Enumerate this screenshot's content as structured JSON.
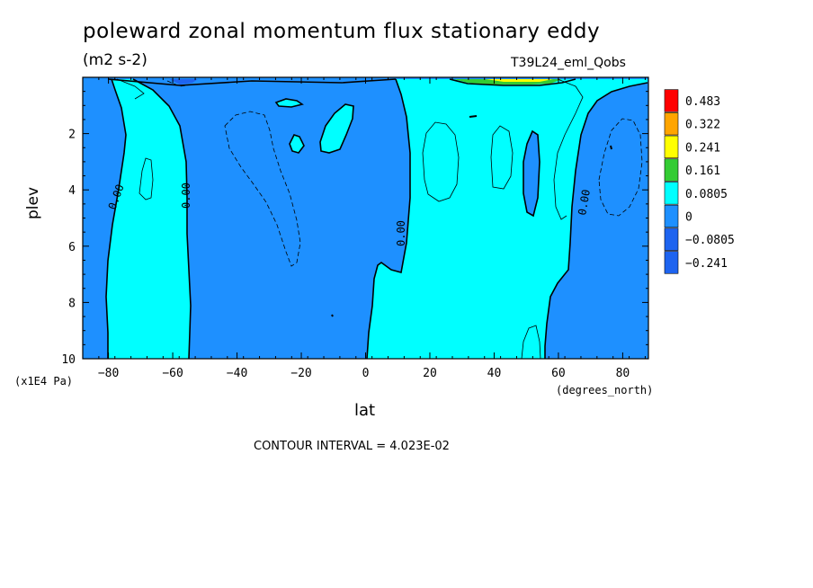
{
  "title": "poleward zonal momentum flux stationary eddy",
  "units": "(m2 s-2)",
  "run_label": "T39L24_eml_Qobs",
  "contour_interval": "CONTOUR INTERVAL = 4.023E-02",
  "colors": {
    "above_0.483": "#ff0000",
    "0.322_to_0.483": "#ff0000",
    "0.241_to_0.322": "#ffa500",
    "0.161_to_0.241": "#ffff00",
    "0.0805_to_0.161": "#33cc33",
    "0_to_0.0805": "#00ffff",
    "-0.0805_to_0": "#1e90ff",
    "-0.241_to_-0.0805": "#1e64f0"
  },
  "chart_data": {
    "type": "heatmap",
    "subtype": "filled contour",
    "title": "poleward zonal momentum flux stationary eddy",
    "xlabel": "lat",
    "xunits": "(degrees_north)",
    "ylabel": "plev",
    "yunits": "(x1E4 Pa)",
    "xlim": [
      -88,
      88
    ],
    "ylim": [
      10,
      0
    ],
    "x_ticks": [
      -80,
      -60,
      -40,
      -20,
      0,
      20,
      40,
      60,
      80
    ],
    "y_ticks": [
      2,
      4,
      6,
      8,
      10
    ],
    "colorbar_levels": [
      "0.483",
      "0.322",
      "0.241",
      "0.161",
      "0.0805",
      "0",
      "−0.0805",
      "−0.241"
    ],
    "zero_contour_labels": [
      "0.00",
      "0.00",
      "0.00",
      "0.00"
    ],
    "regions": [
      {
        "sign": "positive",
        "lat_range": [
          -74,
          -55
        ],
        "plev_range": [
          10,
          0.7
        ]
      },
      {
        "sign": "positive",
        "lat_range": [
          2,
          62
        ],
        "plev_range": [
          10,
          0
        ]
      },
      {
        "sign": "positive",
        "lat_range": [
          -25,
          -14
        ],
        "plev_range": [
          2.3,
          1.0
        ]
      },
      {
        "sign": "negative",
        "lat_range": [
          -88,
          -74
        ],
        "plev_range": [
          10,
          0
        ]
      },
      {
        "sign": "negative",
        "lat_range": [
          -55,
          5
        ],
        "plev_range": [
          10,
          0
        ]
      },
      {
        "sign": "negative",
        "lat_range": [
          62,
          88
        ],
        "plev_range": [
          10,
          0.4
        ]
      },
      {
        "sign": "negative",
        "lat_range": [
          48,
          53
        ],
        "plev_range": [
          3.5,
          1.0
        ]
      }
    ]
  }
}
